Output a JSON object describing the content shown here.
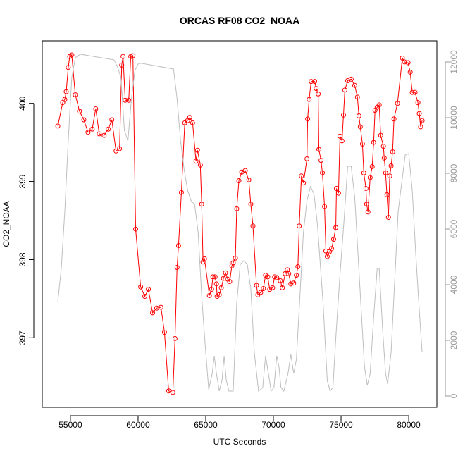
{
  "chart_data": {
    "type": "line",
    "title": "ORCAS RF08 CO2_NOAA",
    "xlabel": "UTC Seconds",
    "ylabel": "CO2_NOAA",
    "xlim": [
      52920,
      82080
    ],
    "xticks": [
      55000,
      60000,
      65000,
      70000,
      75000,
      80000
    ],
    "ylim": [
      396.11,
      400.8
    ],
    "yticks": [
      397,
      398,
      399,
      400
    ],
    "y2lim": [
      -405,
      12760
    ],
    "y2ticks": [
      0,
      2000,
      4000,
      6000,
      8000,
      10000,
      12000
    ],
    "series": [
      {
        "name": "CO2_NOAA",
        "color": "#ff0000",
        "markers": true,
        "x": [
          54070,
          54430,
          54585,
          54690,
          54840,
          54950,
          55100,
          55360,
          55670,
          55990,
          56300,
          56610,
          56870,
          57130,
          57490,
          57800,
          58060,
          58370,
          58630,
          58790,
          58890,
          59050,
          59310,
          59460,
          59620,
          59820,
          60190,
          60500,
          60760,
          61070,
          61380,
          61690,
          61950,
          62260,
          62570,
          62730,
          62880,
          62990,
          63200,
          63450,
          63660,
          63820,
          64030,
          64280,
          64390,
          64600,
          64700,
          64800,
          64910,
          65270,
          65430,
          65530,
          65690,
          65790,
          65840,
          66000,
          66150,
          66310,
          66460,
          66620,
          66770,
          66930,
          67030,
          67190,
          67290,
          67450,
          67660,
          67920,
          68180,
          68330,
          68490,
          68750,
          68850,
          69060,
          69260,
          69420,
          69580,
          69730,
          69940,
          70090,
          70250,
          70510,
          70660,
          70870,
          71030,
          71130,
          71290,
          71500,
          71700,
          71810,
          71910,
          72070,
          72220,
          72480,
          72530,
          72640,
          72790,
          73050,
          73160,
          73310,
          73360,
          73520,
          73620,
          73780,
          73880,
          73980,
          74140,
          74300,
          74450,
          74610,
          74660,
          74810,
          74920,
          75070,
          75180,
          75280,
          75490,
          75750,
          76010,
          76210,
          76320,
          76420,
          76580,
          76680,
          76840,
          76890,
          76990,
          77150,
          77300,
          77410,
          77510,
          77670,
          77820,
          77930,
          78130,
          78190,
          78290,
          78390,
          78500,
          78600,
          78700,
          78810,
          78910,
          79170,
          79530,
          79690,
          79950,
          80110,
          80260,
          80470,
          80680,
          80780,
          80880,
          80990
        ],
        "values": [
          399.71,
          400.01,
          400.05,
          400.15,
          400.46,
          400.6,
          400.62,
          400.11,
          399.9,
          399.79,
          399.63,
          399.67,
          399.93,
          399.61,
          399.59,
          399.67,
          399.79,
          399.39,
          399.42,
          400.49,
          400.6,
          400.04,
          400.04,
          400.6,
          400.61,
          398.39,
          397.65,
          397.53,
          397.62,
          397.32,
          397.38,
          397.39,
          397.07,
          396.32,
          396.3,
          396.99,
          397.9,
          398.18,
          398.86,
          399.75,
          399.78,
          399.82,
          399.75,
          399.26,
          399.4,
          399.21,
          398.71,
          397.97,
          398.01,
          397.54,
          397.62,
          397.78,
          397.78,
          397.69,
          397.53,
          397.55,
          397.64,
          397.76,
          397.83,
          397.75,
          397.72,
          397.92,
          397.96,
          398.02,
          398.65,
          399.01,
          399.12,
          399.14,
          399.02,
          398.71,
          398.43,
          397.67,
          397.55,
          397.58,
          397.63,
          397.8,
          397.78,
          397.62,
          397.64,
          397.78,
          397.77,
          397.73,
          397.64,
          397.82,
          397.87,
          397.82,
          397.69,
          397.7,
          397.8,
          397.91,
          398.43,
          399.07,
          398.98,
          399.29,
          399.8,
          400.05,
          400.28,
          400.28,
          400.19,
          400.12,
          399.41,
          399.27,
          399.11,
          398.68,
          398.11,
          398.04,
          398.1,
          398.14,
          398.26,
          398.41,
          398.91,
          398.85,
          399.58,
          399.52,
          399.85,
          400.17,
          400.29,
          400.31,
          400.23,
          400.08,
          399.84,
          399.7,
          399.48,
          399.11,
          398.91,
          398.71,
          398.61,
          399.05,
          399.19,
          399.5,
          399.91,
          399.95,
          399.98,
          399.59,
          399.45,
          399.3,
          399.11,
          398.83,
          398.54,
          399.07,
          399.2,
          399.38,
          399.8,
          400.0,
          400.58,
          400.53,
          400.52,
          400.4,
          400.14,
          400.14,
          400.01,
          399.87,
          399.7,
          399.78
        ]
      },
      {
        "color": "#bebebe",
        "axis": "y2",
        "markers": false,
        "x": [
          54070,
          54330,
          54585,
          54840,
          55100,
          55360,
          55730,
          58220,
          58480,
          58730,
          58990,
          59250,
          59510,
          59770,
          60030,
          60290,
          62620,
          62880,
          63140,
          63400,
          63660,
          63920,
          64180,
          64440,
          64700,
          64960,
          65220,
          65480,
          65630,
          65790,
          66000,
          66200,
          66360,
          66520,
          66720,
          67030,
          67290,
          67550,
          67810,
          68070,
          68330,
          68590,
          68900,
          69210,
          69420,
          69630,
          69830,
          70040,
          70250,
          70410,
          70560,
          70770,
          71080,
          71290,
          71500,
          71700,
          71960,
          72220,
          72480,
          72740,
          73000,
          73260,
          73670,
          73980,
          74190,
          74400,
          74610,
          74920,
          75230,
          75490,
          75750,
          76010,
          76370,
          76730,
          76940,
          77150,
          77410,
          77670,
          77820,
          78080,
          78290,
          78440,
          78700,
          78960,
          79220,
          79480,
          79740,
          80000,
          80260,
          80520,
          80780,
          80990
        ],
        "values": [
          3393,
          4608,
          6634,
          9166,
          11445,
          12154,
          12280,
          12078,
          11824,
          11445,
          9546,
          9166,
          10685,
          11698,
          11951,
          11951,
          11748,
          10685,
          9166,
          8153,
          7393,
          7014,
          6887,
          5874,
          3595,
          1823,
          228,
          810,
          1443,
          810,
          177,
          557,
          1443,
          557,
          177,
          177,
          3342,
          4735,
          4861,
          4735,
          3849,
          1570,
          177,
          304,
          1443,
          810,
          177,
          304,
          1443,
          1063,
          304,
          177,
          810,
          1494,
          810,
          1317,
          3595,
          5874,
          7014,
          7520,
          7267,
          6127,
          3342,
          557,
          177,
          304,
          2076,
          4355,
          6381,
          8254,
          8254,
          7140,
          4102,
          1063,
          380,
          810,
          2836,
          4583,
          4583,
          2329,
          810,
          430,
          1570,
          4102,
          6634,
          7647,
          8659,
          8710,
          7393,
          5115,
          3089,
          1570
        ]
      }
    ]
  }
}
